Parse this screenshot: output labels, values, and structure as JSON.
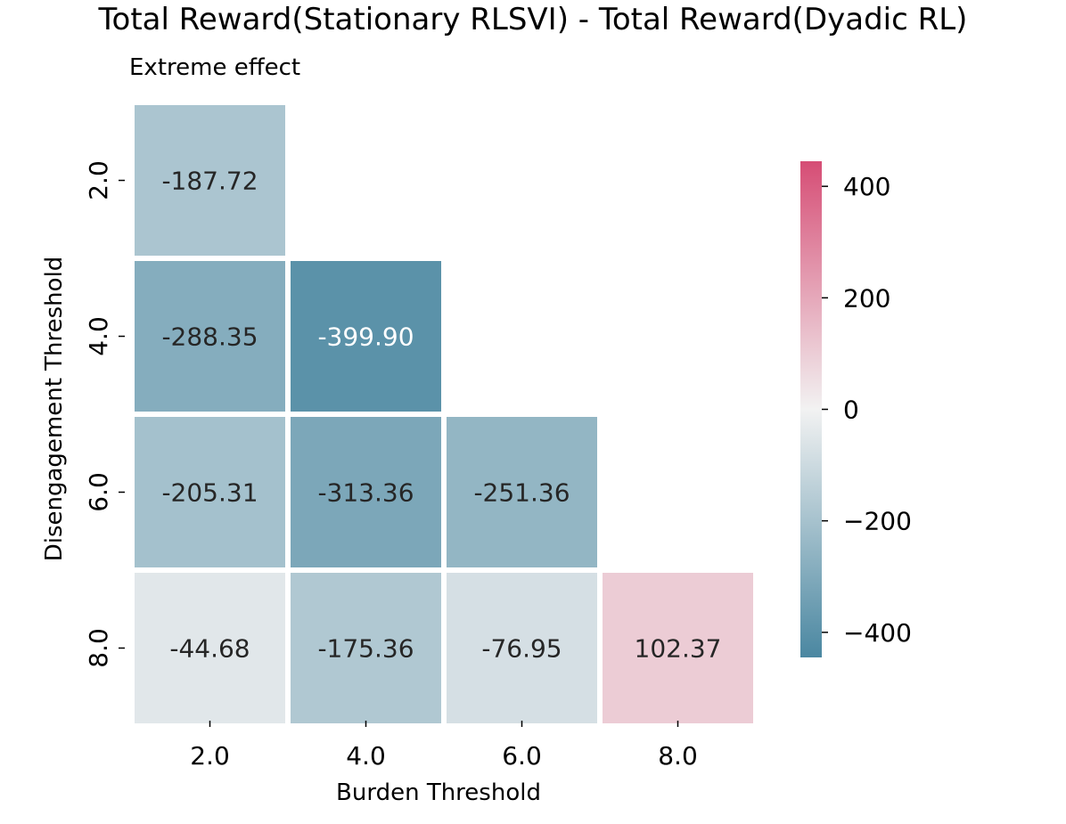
{
  "chart_data": {
    "type": "heatmap",
    "title": "Total Reward(Stationary RLSVI) - Total Reward(Dyadic RL)",
    "subtitle": "Extreme effect",
    "xlabel": "Burden Threshold",
    "ylabel": "Disengagement Threshold",
    "x_categories": [
      "2.0",
      "4.0",
      "6.0",
      "8.0"
    ],
    "y_categories": [
      "2.0",
      "4.0",
      "6.0",
      "8.0"
    ],
    "cells": [
      {
        "row": 0,
        "col": 0,
        "value": -187.72,
        "label": "-187.72"
      },
      {
        "row": 1,
        "col": 0,
        "value": -288.35,
        "label": "-288.35"
      },
      {
        "row": 1,
        "col": 1,
        "value": -399.9,
        "label": "-399.90"
      },
      {
        "row": 2,
        "col": 0,
        "value": -205.31,
        "label": "-205.31"
      },
      {
        "row": 2,
        "col": 1,
        "value": -313.36,
        "label": "-313.36"
      },
      {
        "row": 2,
        "col": 2,
        "value": -251.36,
        "label": "-251.36"
      },
      {
        "row": 3,
        "col": 0,
        "value": -44.68,
        "label": "-44.68"
      },
      {
        "row": 3,
        "col": 1,
        "value": -175.36,
        "label": "-175.36"
      },
      {
        "row": 3,
        "col": 2,
        "value": -76.95,
        "label": "-76.95"
      },
      {
        "row": 3,
        "col": 3,
        "value": 102.37,
        "label": "102.37"
      }
    ],
    "colorbar": {
      "vmin": -445,
      "vmax": 445,
      "ticks": [
        400,
        200,
        0,
        -200,
        -400
      ],
      "tick_labels": [
        "400",
        "200",
        "0",
        "−200",
        "−400"
      ],
      "negative_color": "#4a87a1",
      "center_color": "#f2f2f2",
      "positive_color": "#d64d75"
    },
    "mask": "upper triangle (above diagonal) masked"
  }
}
